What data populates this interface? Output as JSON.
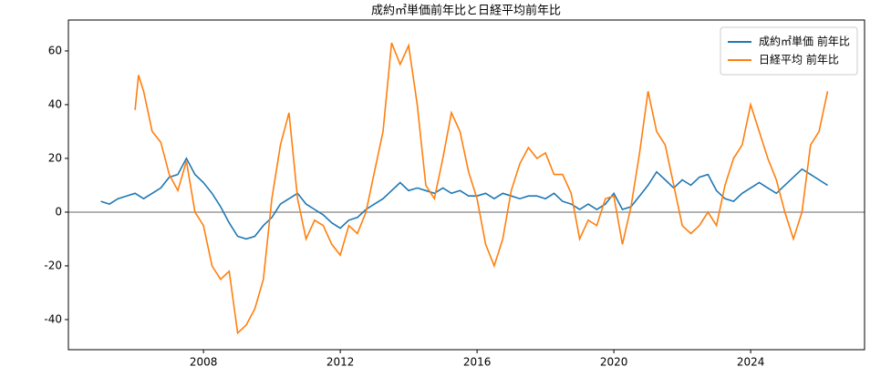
{
  "chart_data": {
    "type": "line",
    "title": "成約㎡単価前年比と日経平均前年比",
    "xlim": [
      2004.05,
      2027.33
    ],
    "ylim": [
      -51.2,
      71.5
    ],
    "xticks": [
      2008,
      2012,
      2016,
      2020,
      2024
    ],
    "yticks": [
      -40,
      -20,
      0,
      20,
      40,
      60
    ],
    "hline": 0,
    "grid": false,
    "legend": "upper right",
    "series": [
      {
        "name": "成約㎡単価 前年比",
        "color": "#1f77b4",
        "x": [
          2005.0,
          2005.25,
          2005.5,
          2005.75,
          2006.0,
          2006.25,
          2006.5,
          2006.75,
          2007.0,
          2007.25,
          2007.5,
          2007.75,
          2008.0,
          2008.25,
          2008.5,
          2008.75,
          2009.0,
          2009.25,
          2009.5,
          2009.75,
          2010.0,
          2010.25,
          2010.5,
          2010.75,
          2011.0,
          2011.25,
          2011.5,
          2011.75,
          2012.0,
          2012.25,
          2012.5,
          2012.75,
          2013.0,
          2013.25,
          2013.5,
          2013.75,
          2014.0,
          2014.25,
          2014.5,
          2014.75,
          2015.0,
          2015.25,
          2015.5,
          2015.75,
          2016.0,
          2016.25,
          2016.5,
          2016.75,
          2017.0,
          2017.25,
          2017.5,
          2017.75,
          2018.0,
          2018.25,
          2018.5,
          2018.75,
          2019.0,
          2019.25,
          2019.5,
          2019.75,
          2020.0,
          2020.25,
          2020.5,
          2020.75,
          2021.0,
          2021.25,
          2021.5,
          2021.75,
          2022.0,
          2022.25,
          2022.5,
          2022.75,
          2023.0,
          2023.25,
          2023.5,
          2023.75,
          2024.0,
          2024.25,
          2024.5,
          2024.75,
          2025.0,
          2025.25,
          2025.5,
          2025.75,
          2026.0,
          2026.25
        ],
        "values": [
          4,
          3,
          5,
          6,
          7,
          5,
          7,
          9,
          13,
          14,
          20,
          14,
          11,
          7,
          2,
          -4,
          -9,
          -10,
          -9,
          -5,
          -2,
          3,
          5,
          7,
          3,
          1,
          -1,
          -4,
          -6,
          -3,
          -2,
          1,
          3,
          5,
          8,
          11,
          8,
          9,
          8,
          7,
          9,
          7,
          8,
          6,
          6,
          7,
          5,
          7,
          6,
          5,
          6,
          6,
          5,
          7,
          4,
          3,
          1,
          3,
          1,
          3,
          7,
          1,
          2,
          6,
          10,
          15,
          12,
          9,
          12,
          10,
          13,
          14,
          8,
          5,
          4,
          7,
          9,
          11,
          9,
          7,
          10,
          13,
          16,
          14,
          12,
          10
        ]
      },
      {
        "name": "日経平均 前年比",
        "color": "#ff7f0e",
        "x": [
          2006.0,
          2006.1,
          2006.25,
          2006.5,
          2006.75,
          2007.0,
          2007.25,
          2007.5,
          2007.75,
          2008.0,
          2008.25,
          2008.5,
          2008.75,
          2009.0,
          2009.25,
          2009.5,
          2009.75,
          2010.0,
          2010.25,
          2010.5,
          2010.75,
          2011.0,
          2011.25,
          2011.5,
          2011.75,
          2012.0,
          2012.25,
          2012.5,
          2012.75,
          2013.0,
          2013.25,
          2013.5,
          2013.75,
          2014.0,
          2014.25,
          2014.5,
          2014.75,
          2015.0,
          2015.25,
          2015.5,
          2015.75,
          2016.0,
          2016.25,
          2016.5,
          2016.75,
          2017.0,
          2017.25,
          2017.5,
          2017.75,
          2018.0,
          2018.25,
          2018.5,
          2018.75,
          2019.0,
          2019.25,
          2019.5,
          2019.75,
          2020.0,
          2020.25,
          2020.5,
          2020.75,
          2021.0,
          2021.25,
          2021.5,
          2021.75,
          2022.0,
          2022.25,
          2022.5,
          2022.75,
          2023.0,
          2023.25,
          2023.5,
          2023.75,
          2024.0,
          2024.25,
          2024.5,
          2024.75,
          2025.0,
          2025.25,
          2025.5,
          2025.75,
          2026.0,
          2026.25
        ],
        "values": [
          38,
          51,
          45,
          30,
          26,
          14,
          8,
          19,
          0,
          -5,
          -20,
          -25,
          -22,
          -45,
          -42,
          -36,
          -25,
          5,
          25,
          37,
          5,
          -10,
          -3,
          -5,
          -12,
          -16,
          -5,
          -8,
          0,
          15,
          30,
          63,
          55,
          62,
          40,
          10,
          5,
          20,
          37,
          30,
          15,
          5,
          -12,
          -20,
          -10,
          8,
          18,
          24,
          20,
          22,
          14,
          14,
          7,
          -10,
          -3,
          -5,
          5,
          6,
          -12,
          2,
          22,
          45,
          30,
          25,
          10,
          -5,
          -8,
          -5,
          0,
          -5,
          10,
          20,
          25,
          40,
          30,
          20,
          12,
          0,
          -10,
          0,
          25,
          30,
          45
        ]
      }
    ]
  }
}
